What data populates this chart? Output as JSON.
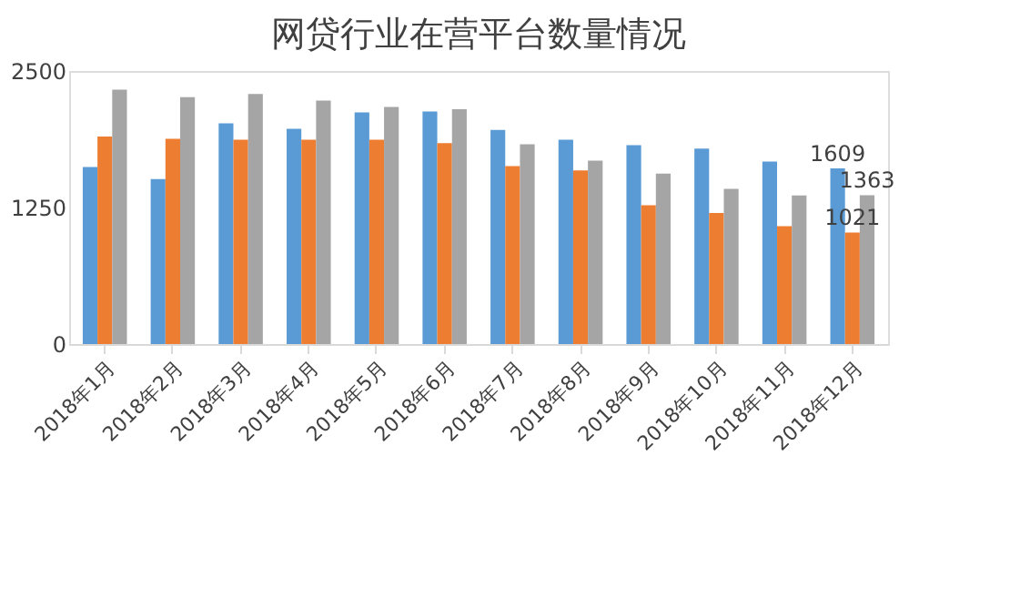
{
  "chart_data": {
    "type": "bar",
    "title": "网贷行业在营平台数量情况",
    "categories": [
      "2018年1月",
      "2018年2月",
      "2018年3月",
      "2018年4月",
      "2018年5月",
      "2018年6月",
      "2018年7月",
      "2018年8月",
      "2018年9月",
      "2018年10月",
      "2018年11月",
      "2018年12月"
    ],
    "series": [
      {
        "color": "#5b9bd5",
        "values": [
          1620,
          1510,
          2020,
          1970,
          2120,
          2130,
          1960,
          1870,
          1820,
          1790,
          1670,
          1609
        ],
        "value_labels": [
          null,
          null,
          null,
          null,
          null,
          null,
          null,
          null,
          null,
          null,
          null,
          "1609"
        ]
      },
      {
        "color": "#ed7d31",
        "values": [
          1900,
          1880,
          1870,
          1870,
          1870,
          1840,
          1630,
          1590,
          1270,
          1200,
          1080,
          1021
        ],
        "value_labels": [
          null,
          null,
          null,
          null,
          null,
          null,
          null,
          null,
          null,
          null,
          null,
          "1021"
        ]
      },
      {
        "color": "#a5a5a5",
        "values": [
          2330,
          2260,
          2290,
          2230,
          2170,
          2150,
          1830,
          1680,
          1560,
          1420,
          1360,
          1363
        ],
        "value_labels": [
          null,
          null,
          null,
          null,
          null,
          null,
          null,
          null,
          null,
          null,
          null,
          "1363"
        ]
      }
    ],
    "ylim": [
      0,
      2500
    ],
    "yticks": [
      0,
      1250,
      2500
    ],
    "grid": false
  }
}
